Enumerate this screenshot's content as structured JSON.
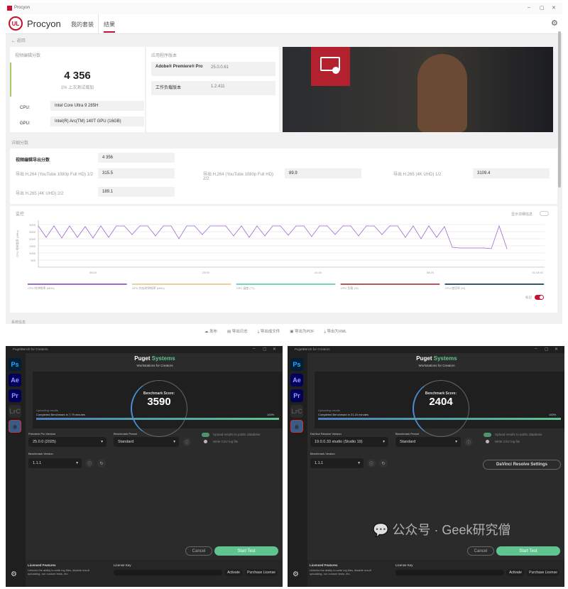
{
  "procyon": {
    "window_title": "Procyon",
    "logo_text": "UL",
    "app_name": "Procyon",
    "tabs": [
      {
        "label": "我的套装"
      },
      {
        "label": "结果",
        "active": true
      }
    ],
    "back_label": "返回",
    "score_card": {
      "title": "视频编辑分数",
      "score": "4 356",
      "delta": "1% 上次测试增加",
      "cpu_label": "CPU:",
      "cpu_value": "Intel Core Ultra 9 285H",
      "gpu_label": "GPU:",
      "gpu_value": "Intel(R) Arc(TM) 140T GPU (16GB)"
    },
    "version_card": {
      "title": "应用程序版本",
      "rows": [
        {
          "name": "Adobe® Premiere® Pro",
          "value": "25.0.0.61"
        },
        {
          "name": "工作负载版本",
          "value": "1.2.411"
        }
      ]
    },
    "detail": {
      "title": "详细分数",
      "main_label": "视频编辑导出分数",
      "main_value": "4 356",
      "items": [
        {
          "label": "导出 H.264 (YouTube 1080p Full HD) 1/2",
          "value": "315.5"
        },
        {
          "label": "导出 H.264 (YouTube 1080p Full HD) 2/2",
          "value": "89.9"
        },
        {
          "label": "导出 H.265 (4K UHD) 1/2",
          "value": "3109.4"
        },
        {
          "label": "导出 H.265 (4K UHD) 2/2",
          "value": "189.1"
        }
      ]
    },
    "monitor": {
      "title": "监控",
      "details_toggle_label": "显示详细信息",
      "marker_label": "标记",
      "marker_on": true,
      "details_on": false,
      "next_section": "系统信息"
    },
    "toolbar": [
      {
        "label": "发布",
        "icon": "cloud-icon"
      },
      {
        "label": "导出日志",
        "icon": "file-icon"
      },
      {
        "label": "导出成文件",
        "icon": "download-icon"
      },
      {
        "label": "导出为PDF",
        "icon": "pdf-icon"
      },
      {
        "label": "导出为XML",
        "icon": "download-icon"
      }
    ],
    "accent": "#c8102e"
  },
  "chart_data": {
    "type": "line",
    "ylabel": "CPU 时钟频率 (MHz)",
    "yticks": [
      500,
      1000,
      1500,
      2000,
      2500,
      3000
    ],
    "ylim": [
      0,
      3300
    ],
    "xticks": [
      "08:20",
      "25:00",
      "41:40",
      "58:20",
      "01:15:00"
    ],
    "series": [
      {
        "name": "CPU 时钟频率 (MHz)",
        "color": "#9b6bd0",
        "values": [
          2900,
          2100,
          2900,
          2050,
          2900,
          2100,
          2850,
          2050,
          2900,
          2100,
          2900,
          2900,
          2300,
          2900,
          2900,
          2200,
          2900,
          2900,
          2000,
          2900,
          2900,
          2300,
          2900,
          2900,
          2900,
          2200,
          2900,
          2100,
          2900,
          2200,
          2900,
          2900,
          2250,
          2900,
          2900,
          2150,
          2900,
          2900,
          2300,
          2900,
          2900,
          2200,
          2900,
          2900,
          2300,
          2900,
          2900,
          2100,
          2900,
          2000,
          2900,
          2100,
          2850,
          1400,
          1350,
          1350,
          1350,
          1350,
          1300,
          2900,
          1300
        ]
      }
    ],
    "legend": [
      {
        "name": "CPU 时钟频率 (MHz)",
        "color": "#9b6bd0"
      },
      {
        "name": "GPU 内存时钟频率 (MHz)",
        "color": "#e8d49a"
      },
      {
        "name": "CPU 温度 (°C)",
        "color": "#6fd6c4"
      },
      {
        "name": "GPU 负载 (%)",
        "color": "#c0505a"
      },
      {
        "name": "CPU 使用率 (%)",
        "color": "#2f5d6e"
      }
    ],
    "grid": true,
    "legend_position": "bottom"
  },
  "puget": [
    {
      "window_title": "PugetBench for Creators",
      "brand": "Puget",
      "brand2": "Systems",
      "tagline": "Workstations for Creators",
      "score_label": "Benchmark Score:",
      "score": "3590",
      "status1": "Uploading results",
      "status2": "Completed Benchmark in 7.79 minutes",
      "progress": "100%",
      "progress_value": 100,
      "version_label": "Premiere Pro Version",
      "version_value": "25.0.0 (2025)",
      "preset_label": "Benchmark Preset",
      "preset_value": "Standard",
      "bver_label": "Benchmark Version",
      "bver_value": "1.1.1",
      "upload_label": "Upload results to public database",
      "csv_label": "Write CSV log file",
      "extra_button": "",
      "cancel": "Cancel",
      "start": "Start Test",
      "lic_title": "Licensed Features",
      "lic_desc": "Unlocks the ability to write log files, disable result uploading, run custom tests, etc.",
      "lic_key_label": "License Key",
      "activate": "Activate",
      "purchase": "Purchase License"
    },
    {
      "window_title": "PugetBench for Creators",
      "brand": "Puget",
      "brand2": "Systems",
      "tagline": "Workstations for Creators",
      "score_label": "Benchmark Score:",
      "score": "2404",
      "status1": "Uploading results",
      "status2": "Completed Benchmark in 21.24 minutes",
      "progress": "100%",
      "progress_value": 100,
      "version_label": "DaVinci Resolve Version",
      "version_value": "19.0.0.33 studio (Studio 19)",
      "preset_label": "Benchmark Preset",
      "preset_value": "Standard",
      "bver_label": "Benchmark Version",
      "bver_value": "1.1.1",
      "upload_label": "Upload results to public database",
      "csv_label": "Write CSV log file",
      "extra_button": "DaVinci Resolve Settings",
      "cancel": "Cancel",
      "start": "Start Test",
      "lic_title": "Licensed Features",
      "lic_desc": "Unlocks the ability to write log files, disable result uploading, run custom tests, etc.",
      "lic_key_label": "License Key",
      "activate": "Activate",
      "purchase": "Purchase License"
    }
  ],
  "sidebar_apps": [
    "Ps",
    "Ae",
    "Pr",
    "LrC"
  ],
  "watermark": "公众号 · Geek研究僧"
}
